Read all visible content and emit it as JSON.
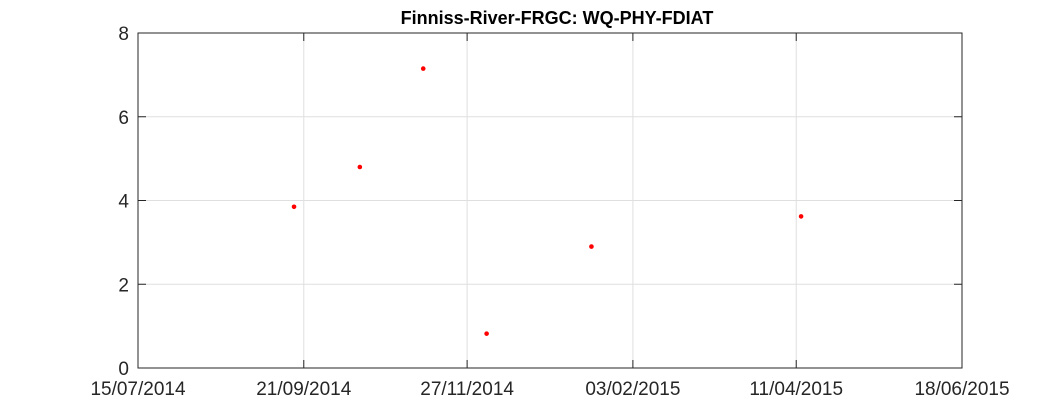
{
  "chart_data": {
    "type": "scatter",
    "title": "Finniss-River-FRGC: WQ-PHY-FDIAT",
    "xlabel": "",
    "ylabel": "",
    "x_axis_type": "date",
    "xlim": [
      "2014-07-15",
      "2015-06-18"
    ],
    "ylim": [
      0,
      8
    ],
    "xticks": [
      "2014-07-15",
      "2014-09-21",
      "2014-11-27",
      "2015-02-03",
      "2015-04-11",
      "2015-06-18"
    ],
    "xtick_labels": [
      "15/07/2014",
      "21/09/2014",
      "27/11/2014",
      "03/02/2015",
      "11/04/2015",
      "18/06/2015"
    ],
    "yticks": [
      0,
      2,
      4,
      6,
      8
    ],
    "ytick_labels": [
      "0",
      "2",
      "4",
      "6",
      "8"
    ],
    "grid": true,
    "box": true,
    "marker": "dot",
    "series": [
      {
        "color": "#ff0000",
        "points": [
          {
            "x": "2014-09-17",
            "y": 3.85
          },
          {
            "x": "2014-10-14",
            "y": 4.8
          },
          {
            "x": "2014-11-09",
            "y": 7.15
          },
          {
            "x": "2014-12-05",
            "y": 0.82
          },
          {
            "x": "2015-01-17",
            "y": 2.9
          },
          {
            "x": "2015-04-13",
            "y": 3.62
          }
        ]
      }
    ]
  }
}
